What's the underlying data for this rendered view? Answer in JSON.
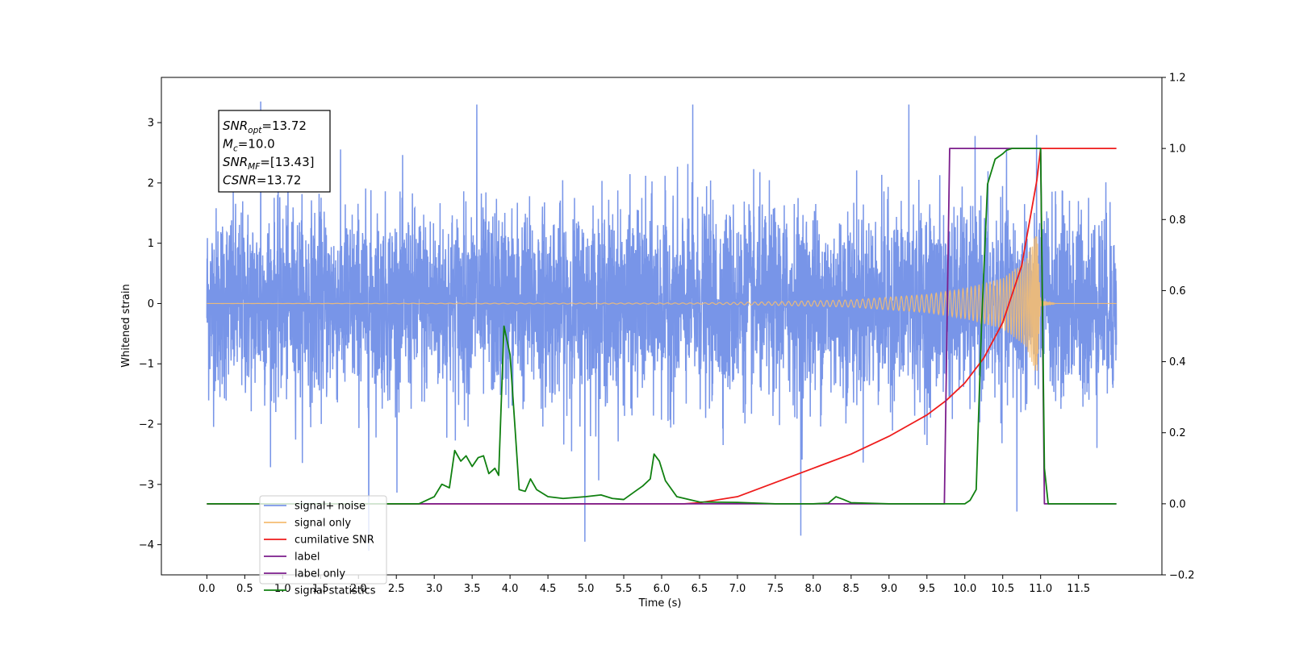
{
  "chart_data": {
    "type": "line",
    "xlabel": "Time (s)",
    "ylabel": "Whitened strain",
    "ylabel_right": "",
    "xlim": [
      -0.6,
      12.6
    ],
    "ylim": [
      -4.5,
      3.75
    ],
    "ylim_right": [
      -0.2,
      1.2
    ],
    "x_ticks": [
      "0.0",
      "0.5",
      "1.0",
      "1.5",
      "2.0",
      "2.5",
      "3.0",
      "3.5",
      "4.0",
      "4.5",
      "5.0",
      "5.5",
      "6.0",
      "6.5",
      "7.0",
      "7.5",
      "8.0",
      "8.5",
      "9.0",
      "9.5",
      "10.0",
      "10.5",
      "11.0",
      "11.5"
    ],
    "y_ticks": [
      "3",
      "2",
      "1",
      "0",
      "−1",
      "−2",
      "−3",
      "−4"
    ],
    "y_ticks_right": [
      "1.2",
      "1.0",
      "0.8",
      "0.6",
      "0.4",
      "0.2",
      "0.0",
      "−0.2"
    ],
    "grid": false,
    "legend_position": "lower-left",
    "info_box": [
      {
        "base": "SNR",
        "sub": "opt",
        "value": "=13.72"
      },
      {
        "base": "M",
        "sub": "c",
        "value": "=10.0"
      },
      {
        "base": "SNR",
        "sub": "MF",
        "value": "=[13.43]"
      },
      {
        "base": "CSNR",
        "sub": "",
        "value": "=13.72"
      }
    ],
    "series": [
      {
        "name": "signal+ noise",
        "color": "#7895e8",
        "axis": "left",
        "x_range": [
          0.0,
          12.0
        ],
        "envelope": {
          "typical_abs": 1.9,
          "peak_values": [
            3.35,
            -4.1,
            3.3,
            -3.95,
            3.3,
            -3.85,
            3.3,
            -3.45
          ]
        }
      },
      {
        "name": "signal only",
        "color": "#f4bd72",
        "axis": "left",
        "x_range": [
          0.0,
          12.0
        ],
        "envelope_points": [
          [
            0.0,
            0.0
          ],
          [
            6.5,
            0.01
          ],
          [
            7.5,
            0.03
          ],
          [
            8.5,
            0.06
          ],
          [
            9.5,
            0.15
          ],
          [
            10.0,
            0.25
          ],
          [
            10.5,
            0.42
          ],
          [
            10.8,
            0.7
          ],
          [
            10.95,
            1.2
          ],
          [
            11.0,
            0.05
          ],
          [
            11.2,
            0.0
          ],
          [
            12.0,
            0.0
          ]
        ]
      },
      {
        "name": "cumilative SNR",
        "color": "#ee1c1c",
        "axis": "right",
        "points": [
          [
            0.0,
            0.0
          ],
          [
            6.3,
            0.0
          ],
          [
            6.5,
            0.003
          ],
          [
            7.0,
            0.02
          ],
          [
            7.5,
            0.06
          ],
          [
            8.0,
            0.1
          ],
          [
            8.5,
            0.14
          ],
          [
            9.0,
            0.19
          ],
          [
            9.5,
            0.25
          ],
          [
            9.75,
            0.29
          ],
          [
            10.0,
            0.34
          ],
          [
            10.25,
            0.41
          ],
          [
            10.5,
            0.51
          ],
          [
            10.75,
            0.67
          ],
          [
            10.95,
            0.91
          ],
          [
            11.0,
            1.0
          ],
          [
            12.0,
            1.0
          ]
        ]
      },
      {
        "name": "label",
        "color": "#7b1d8c",
        "axis": "right",
        "points": [
          [
            0.0,
            0.0
          ],
          [
            9.73,
            0.0
          ],
          [
            9.8,
            1.0
          ],
          [
            11.0,
            1.0
          ],
          [
            11.05,
            0.0
          ],
          [
            12.0,
            0.0
          ]
        ]
      },
      {
        "name": "label only",
        "color": "#7b1d8c",
        "axis": "right",
        "hidden_under_other_series": true
      },
      {
        "name": "signal statistics",
        "color": "#108010",
        "axis": "right",
        "points": [
          [
            0.0,
            0.0
          ],
          [
            2.8,
            0.0
          ],
          [
            3.0,
            0.02
          ],
          [
            3.1,
            0.055
          ],
          [
            3.2,
            0.045
          ],
          [
            3.27,
            0.15
          ],
          [
            3.35,
            0.12
          ],
          [
            3.42,
            0.135
          ],
          [
            3.5,
            0.105
          ],
          [
            3.58,
            0.13
          ],
          [
            3.65,
            0.135
          ],
          [
            3.72,
            0.085
          ],
          [
            3.8,
            0.1
          ],
          [
            3.85,
            0.08
          ],
          [
            3.92,
            0.5
          ],
          [
            4.0,
            0.42
          ],
          [
            4.07,
            0.2
          ],
          [
            4.12,
            0.04
          ],
          [
            4.2,
            0.035
          ],
          [
            4.27,
            0.07
          ],
          [
            4.35,
            0.04
          ],
          [
            4.5,
            0.02
          ],
          [
            4.7,
            0.015
          ],
          [
            5.0,
            0.02
          ],
          [
            5.2,
            0.025
          ],
          [
            5.35,
            0.015
          ],
          [
            5.5,
            0.012
          ],
          [
            5.65,
            0.035
          ],
          [
            5.75,
            0.05
          ],
          [
            5.85,
            0.07
          ],
          [
            5.9,
            0.14
          ],
          [
            5.97,
            0.12
          ],
          [
            6.05,
            0.065
          ],
          [
            6.2,
            0.02
          ],
          [
            6.5,
            0.005
          ],
          [
            7.0,
            0.004
          ],
          [
            7.5,
            0.0
          ],
          [
            8.0,
            0.0
          ],
          [
            8.2,
            0.002
          ],
          [
            8.3,
            0.02
          ],
          [
            8.4,
            0.012
          ],
          [
            8.5,
            0.003
          ],
          [
            9.0,
            0.0
          ],
          [
            10.0,
            0.0
          ],
          [
            10.07,
            0.01
          ],
          [
            10.15,
            0.04
          ],
          [
            10.22,
            0.5
          ],
          [
            10.3,
            0.9
          ],
          [
            10.4,
            0.97
          ],
          [
            10.5,
            0.985
          ],
          [
            10.55,
            0.995
          ],
          [
            10.62,
            1.0
          ],
          [
            11.0,
            1.0
          ],
          [
            11.05,
            0.1
          ],
          [
            11.1,
            0.0
          ],
          [
            12.0,
            0.0
          ]
        ]
      }
    ]
  }
}
